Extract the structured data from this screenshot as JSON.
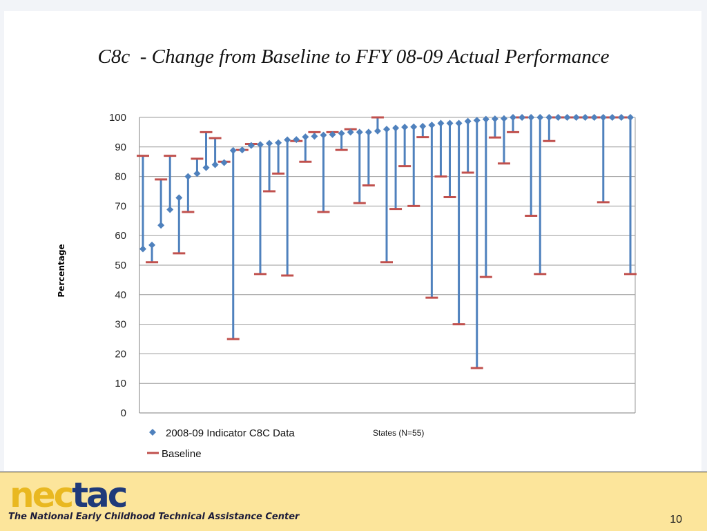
{
  "slide": {
    "title": "C8c  - Change from Baseline to FFY 08-09 Actual Performance",
    "page_number": "10"
  },
  "footer": {
    "logo_part1": "nec",
    "logo_part2": "tac",
    "tagline": "The National Early Childhood Technical Assistance Center",
    "logo_colors": {
      "part1": "#e9b820",
      "part2": "#1f3a7a"
    }
  },
  "chart_data": {
    "type": "line",
    "title": "",
    "xlabel": "States (N=55)",
    "ylabel": "Percentage",
    "ylim": [
      0,
      100
    ],
    "yticks": [
      "0",
      "10",
      "20",
      "30",
      "40",
      "50",
      "60",
      "70",
      "80",
      "90",
      "100"
    ],
    "grid": true,
    "legend_position": "bottom-left",
    "colors": {
      "data": "#4f81bd",
      "baseline": "#c0504d"
    },
    "series": [
      {
        "name": "2008-09 Indicator C8C Data",
        "marker": "diamond",
        "values": [
          55.5,
          56.8,
          63.5,
          68.8,
          72.8,
          80,
          81,
          83,
          84,
          84.7,
          88.8,
          89,
          90.5,
          90.8,
          91.2,
          91.4,
          92.4,
          92.5,
          93.4,
          93.6,
          94,
          94.2,
          94.6,
          95,
          95,
          95,
          95.4,
          96,
          96.4,
          96.7,
          96.8,
          97,
          97.4,
          98,
          98,
          98,
          98.7,
          99,
          99.4,
          99.5,
          99.6,
          100,
          100,
          100,
          100,
          100,
          100,
          100,
          100,
          100,
          100,
          100,
          100,
          100,
          100
        ]
      },
      {
        "name": "Baseline",
        "marker": "dash",
        "values": [
          87,
          51,
          79,
          87,
          54,
          68,
          86,
          95,
          93,
          85,
          25,
          89,
          91,
          47,
          75,
          81,
          46.5,
          92,
          85,
          95,
          68,
          95,
          89,
          96,
          71,
          77,
          100,
          51,
          69,
          83.5,
          70,
          93.3,
          39,
          80,
          73,
          30,
          81.3,
          15.2,
          46,
          93.2,
          84.4,
          95,
          100,
          66.7,
          47,
          92,
          100,
          100,
          100,
          100,
          100,
          71.3,
          100,
          100,
          47
        ]
      }
    ]
  }
}
